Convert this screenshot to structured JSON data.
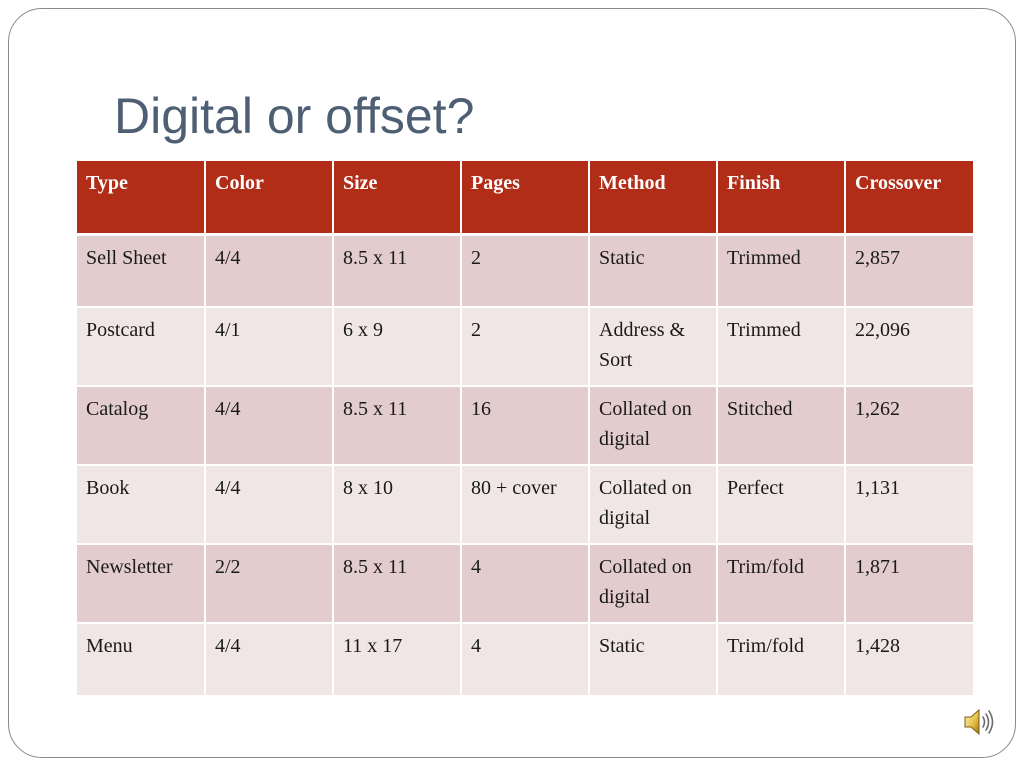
{
  "slide": {
    "title": "Digital or offset?"
  },
  "table": {
    "headers": [
      "Type",
      "Color",
      "Size",
      "Pages",
      "Method",
      "Finish",
      "Crossover"
    ],
    "rows": [
      [
        "Sell Sheet",
        "4/4",
        "8.5 x 11",
        "2",
        "Static",
        "Trimmed",
        "2,857"
      ],
      [
        "Postcard",
        "4/1",
        "6 x 9",
        "2",
        "Address & Sort",
        "Trimmed",
        "22,096"
      ],
      [
        "Catalog",
        "4/4",
        "8.5 x 11",
        "16",
        "Collated on digital",
        "Stitched",
        "1,262"
      ],
      [
        "Book",
        "4/4",
        "8 x 10",
        "80 + cover",
        "Collated on digital",
        "Perfect",
        "1,131"
      ],
      [
        "Newsletter",
        "2/2",
        "8.5 x 11",
        "4",
        "Collated on digital",
        "Trim/fold",
        "1,871"
      ],
      [
        "Menu",
        "4/4",
        "11 x 17",
        "4",
        "Static",
        "Trim/fold",
        "1,428"
      ]
    ]
  },
  "icons": {
    "audio": "speaker-icon"
  },
  "colors": {
    "title": "#4f5f73",
    "header_background": "#b22d18",
    "row_dark": "#e3cccd",
    "row_light": "#f0e6e6",
    "frame_border": "#8a8a8a"
  }
}
